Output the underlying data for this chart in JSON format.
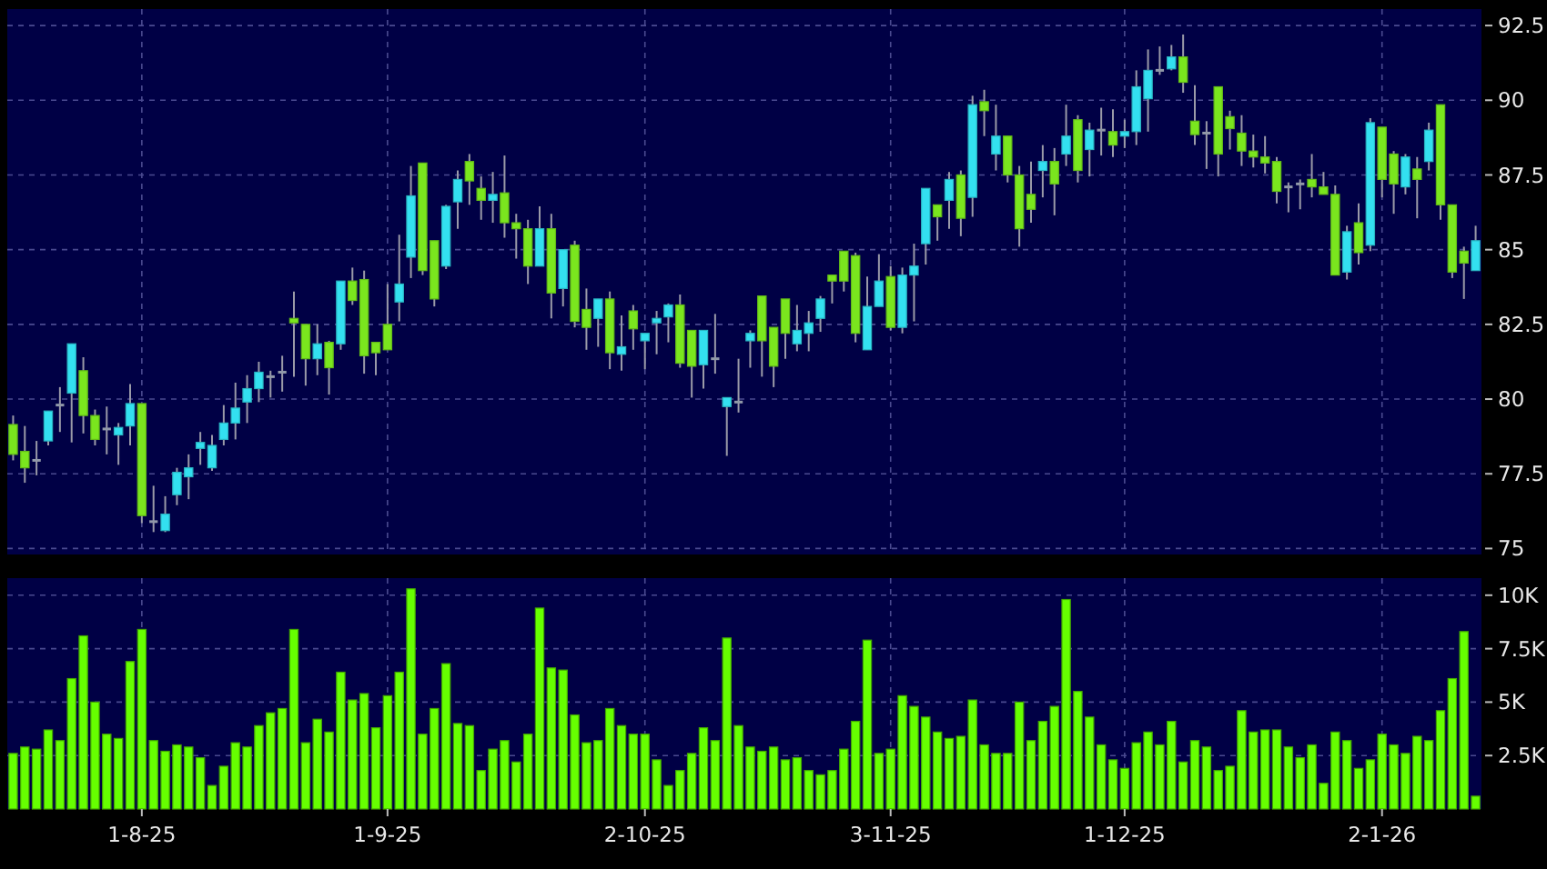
{
  "chart_data": [
    {
      "type": "candlestick",
      "grid": true,
      "tick_labels": "y",
      "ylim": [
        74.8,
        93.05
      ],
      "yticks": [
        75,
        77.5,
        80,
        82.5,
        85,
        87.5,
        90,
        92.5
      ],
      "categories": [
        null,
        null,
        null,
        null,
        null,
        null,
        null,
        null,
        null,
        null,
        null,
        null,
        null,
        null,
        null,
        null,
        null,
        null,
        null,
        null,
        null,
        null,
        null,
        null,
        null,
        null,
        null,
        null,
        null,
        null,
        null,
        null,
        null,
        null,
        null,
        null,
        null,
        null,
        null,
        null,
        null,
        null,
        null,
        null,
        null,
        null,
        null,
        null,
        null,
        null,
        null,
        null,
        null,
        null,
        null,
        null,
        null,
        null,
        null,
        null,
        null,
        null,
        null,
        null,
        null,
        null,
        null,
        null,
        null,
        null,
        null,
        null,
        null,
        null,
        null,
        null,
        null,
        null,
        null,
        null,
        null,
        null,
        null,
        null,
        null,
        null,
        null,
        null,
        null,
        null,
        null,
        null,
        null,
        null,
        null,
        null,
        null,
        null,
        null,
        null,
        null,
        null,
        null,
        null,
        null,
        null,
        null,
        null,
        null,
        null,
        null,
        null,
        null,
        null,
        null,
        null,
        null,
        null,
        null,
        null,
        null,
        null,
        null,
        null,
        null,
        null
      ],
      "ohlc": [
        [
          79.15,
          79.45,
          77.95,
          78.15
        ],
        [
          78.25,
          79.1,
          77.2,
          77.7
        ],
        [
          77.95,
          78.6,
          77.45,
          77.95
        ],
        [
          78.6,
          79.6,
          78.45,
          79.6
        ],
        [
          79.8,
          80.4,
          78.9,
          79.8
        ],
        [
          80.2,
          81.85,
          78.55,
          81.85
        ],
        [
          80.95,
          81.4,
          78.85,
          79.45
        ],
        [
          79.45,
          79.65,
          78.45,
          78.65
        ],
        [
          79.0,
          79.75,
          78.15,
          79.0
        ],
        [
          78.8,
          79.2,
          77.8,
          79.05
        ],
        [
          79.1,
          80.5,
          78.45,
          79.85
        ],
        [
          79.85,
          79.85,
          75.85,
          76.1
        ],
        [
          75.9,
          77.1,
          75.55,
          75.9
        ],
        [
          75.6,
          76.75,
          75.55,
          76.15
        ],
        [
          76.8,
          77.7,
          76.45,
          77.55
        ],
        [
          77.4,
          78.15,
          76.65,
          77.7
        ],
        [
          78.35,
          78.9,
          77.8,
          78.55
        ],
        [
          77.7,
          78.8,
          77.6,
          78.45
        ],
        [
          78.65,
          79.8,
          78.45,
          79.2
        ],
        [
          79.2,
          80.55,
          78.65,
          79.7
        ],
        [
          79.9,
          80.8,
          79.2,
          80.35
        ],
        [
          80.35,
          81.25,
          79.9,
          80.9
        ],
        [
          80.75,
          80.95,
          80.05,
          80.75
        ],
        [
          80.9,
          81.45,
          80.25,
          80.9
        ],
        [
          82.7,
          83.6,
          80.75,
          82.55
        ],
        [
          82.5,
          82.5,
          80.45,
          81.35
        ],
        [
          81.35,
          82.5,
          80.8,
          81.85
        ],
        [
          81.9,
          81.95,
          80.15,
          81.05
        ],
        [
          81.85,
          83.95,
          81.65,
          83.95
        ],
        [
          83.95,
          84.4,
          83.15,
          83.3
        ],
        [
          84.0,
          84.3,
          80.85,
          81.45
        ],
        [
          81.9,
          81.9,
          80.8,
          81.55
        ],
        [
          82.5,
          83.85,
          81.65,
          81.65
        ],
        [
          83.25,
          85.5,
          82.6,
          83.85
        ],
        [
          84.75,
          87.8,
          84.05,
          86.8
        ],
        [
          87.9,
          87.9,
          84.15,
          84.3
        ],
        [
          85.3,
          85.3,
          83.1,
          83.35
        ],
        [
          84.45,
          86.5,
          84.35,
          86.45
        ],
        [
          86.6,
          87.65,
          85.7,
          87.35
        ],
        [
          87.95,
          88.2,
          86.5,
          87.3
        ],
        [
          87.05,
          87.45,
          86.0,
          86.65
        ],
        [
          86.65,
          87.6,
          85.9,
          86.85
        ],
        [
          86.9,
          88.15,
          85.4,
          85.9
        ],
        [
          85.9,
          86.2,
          84.7,
          85.7
        ],
        [
          85.7,
          86.0,
          83.85,
          84.45
        ],
        [
          84.45,
          86.45,
          84.45,
          85.7
        ],
        [
          85.7,
          86.2,
          82.7,
          83.55
        ],
        [
          83.7,
          85.0,
          83.1,
          85.0
        ],
        [
          85.15,
          85.3,
          82.4,
          82.6
        ],
        [
          83.0,
          83.7,
          81.65,
          82.4
        ],
        [
          82.7,
          83.35,
          81.75,
          83.35
        ],
        [
          83.35,
          83.6,
          81.0,
          81.55
        ],
        [
          81.5,
          82.8,
          80.95,
          81.75
        ],
        [
          82.95,
          83.15,
          81.65,
          82.35
        ],
        [
          81.95,
          82.2,
          81.0,
          82.2
        ],
        [
          82.55,
          82.95,
          81.5,
          82.7
        ],
        [
          82.75,
          83.2,
          81.9,
          83.15
        ],
        [
          83.15,
          83.5,
          81.05,
          81.2
        ],
        [
          82.3,
          82.3,
          80.05,
          81.1
        ],
        [
          81.15,
          82.3,
          80.35,
          82.3
        ],
        [
          81.35,
          82.85,
          80.85,
          81.35
        ],
        [
          79.75,
          80.05,
          78.1,
          80.05
        ],
        [
          79.9,
          81.35,
          79.55,
          79.9
        ],
        [
          81.95,
          82.3,
          81.05,
          82.2
        ],
        [
          83.45,
          83.45,
          80.75,
          81.95
        ],
        [
          82.4,
          82.4,
          80.4,
          81.1
        ],
        [
          83.35,
          83.35,
          81.35,
          82.2
        ],
        [
          81.85,
          83.15,
          81.6,
          82.3
        ],
        [
          82.2,
          82.95,
          81.6,
          82.55
        ],
        [
          82.7,
          83.45,
          82.25,
          83.35
        ],
        [
          84.15,
          84.15,
          83.2,
          83.95
        ],
        [
          84.95,
          84.95,
          83.6,
          83.95
        ],
        [
          84.8,
          84.9,
          81.9,
          82.2
        ],
        [
          81.65,
          84.1,
          81.65,
          83.1
        ],
        [
          83.1,
          84.85,
          83.1,
          83.95
        ],
        [
          84.1,
          84.45,
          82.3,
          82.4
        ],
        [
          82.4,
          84.4,
          82.2,
          84.15
        ],
        [
          84.15,
          85.2,
          82.6,
          84.45
        ],
        [
          85.2,
          87.05,
          84.5,
          87.05
        ],
        [
          86.5,
          86.5,
          85.3,
          86.1
        ],
        [
          86.65,
          87.6,
          85.7,
          87.35
        ],
        [
          87.5,
          87.65,
          85.45,
          86.05
        ],
        [
          86.75,
          90.15,
          86.1,
          89.85
        ],
        [
          89.95,
          90.35,
          88.8,
          89.65
        ],
        [
          88.2,
          89.85,
          87.65,
          88.8
        ],
        [
          88.8,
          88.8,
          87.25,
          87.5
        ],
        [
          87.5,
          87.8,
          85.1,
          85.7
        ],
        [
          86.85,
          87.95,
          85.9,
          86.35
        ],
        [
          87.65,
          88.5,
          86.75,
          87.95
        ],
        [
          87.95,
          88.4,
          86.15,
          87.2
        ],
        [
          88.2,
          89.85,
          87.8,
          88.8
        ],
        [
          89.35,
          89.5,
          87.25,
          87.65
        ],
        [
          88.35,
          89.25,
          87.45,
          89.0
        ],
        [
          89.0,
          89.75,
          88.15,
          89.0
        ],
        [
          88.95,
          89.7,
          88.1,
          88.5
        ],
        [
          88.8,
          89.35,
          88.4,
          88.95
        ],
        [
          88.95,
          91.0,
          88.5,
          90.45
        ],
        [
          90.05,
          91.7,
          88.95,
          91.0
        ],
        [
          91.0,
          91.8,
          90.85,
          91.0
        ],
        [
          91.05,
          91.85,
          91.0,
          91.45
        ],
        [
          91.45,
          92.2,
          90.25,
          90.6
        ],
        [
          89.3,
          90.5,
          88.5,
          88.85
        ],
        [
          88.9,
          89.3,
          87.7,
          88.9
        ],
        [
          90.45,
          90.45,
          87.45,
          88.2
        ],
        [
          89.45,
          89.65,
          88.35,
          89.05
        ],
        [
          88.9,
          89.5,
          87.8,
          88.3
        ],
        [
          88.3,
          88.85,
          87.75,
          88.1
        ],
        [
          88.1,
          88.8,
          87.55,
          87.9
        ],
        [
          87.95,
          88.1,
          86.55,
          86.95
        ],
        [
          87.1,
          87.25,
          86.25,
          87.1
        ],
        [
          87.2,
          87.35,
          86.35,
          87.2
        ],
        [
          87.35,
          88.2,
          86.75,
          87.1
        ],
        [
          87.1,
          87.6,
          86.85,
          86.85
        ],
        [
          86.85,
          87.15,
          84.15,
          84.15
        ],
        [
          84.25,
          85.8,
          84.0,
          85.6
        ],
        [
          85.9,
          86.55,
          84.5,
          84.9
        ],
        [
          85.15,
          89.4,
          84.95,
          89.25
        ],
        [
          89.1,
          89.1,
          86.75,
          87.35
        ],
        [
          88.2,
          88.3,
          86.2,
          87.2
        ],
        [
          87.1,
          88.2,
          86.85,
          88.1
        ],
        [
          87.7,
          88.1,
          86.05,
          87.35
        ],
        [
          87.95,
          89.25,
          87.65,
          89.0
        ],
        [
          89.85,
          89.85,
          86.0,
          86.5
        ],
        [
          86.5,
          86.5,
          84.05,
          84.25
        ],
        [
          84.95,
          85.1,
          83.35,
          84.55
        ],
        [
          84.3,
          85.8,
          84.3,
          85.3
        ]
      ],
      "colors": [
        "#7ae61e",
        "#7ae61e",
        "#9098a8",
        "#33e0f0",
        "#9098a8",
        "#33e0f0",
        "#7ae61e",
        "#7ae61e",
        "#9098a8",
        "#33e0f0",
        "#33e0f0",
        "#7ae61e",
        "#9098a8",
        "#33e0f0",
        "#33e0f0",
        "#33e0f0",
        "#33e0f0",
        "#33e0f0",
        "#33e0f0",
        "#33e0f0",
        "#33e0f0",
        "#33e0f0",
        "#9098a8",
        "#9098a8",
        "#7ae61e",
        "#7ae61e",
        "#33e0f0",
        "#7ae61e",
        "#33e0f0",
        "#7ae61e",
        "#7ae61e",
        "#7ae61e",
        "#7ae61e",
        "#33e0f0",
        "#33e0f0",
        "#7ae61e",
        "#7ae61e",
        "#33e0f0",
        "#33e0f0",
        "#7ae61e",
        "#7ae61e",
        "#33e0f0",
        "#7ae61e",
        "#7ae61e",
        "#7ae61e",
        "#33e0f0",
        "#7ae61e",
        "#33e0f0",
        "#7ae61e",
        "#7ae61e",
        "#33e0f0",
        "#7ae61e",
        "#33e0f0",
        "#7ae61e",
        "#33e0f0",
        "#33e0f0",
        "#33e0f0",
        "#7ae61e",
        "#7ae61e",
        "#33e0f0",
        "#9098a8",
        "#33e0f0",
        "#9098a8",
        "#33e0f0",
        "#7ae61e",
        "#7ae61e",
        "#7ae61e",
        "#33e0f0",
        "#33e0f0",
        "#33e0f0",
        "#7ae61e",
        "#7ae61e",
        "#7ae61e",
        "#33e0f0",
        "#33e0f0",
        "#7ae61e",
        "#33e0f0",
        "#33e0f0",
        "#33e0f0",
        "#7ae61e",
        "#33e0f0",
        "#7ae61e",
        "#33e0f0",
        "#7ae61e",
        "#33e0f0",
        "#7ae61e",
        "#7ae61e",
        "#7ae61e",
        "#33e0f0",
        "#7ae61e",
        "#33e0f0",
        "#7ae61e",
        "#33e0f0",
        "#9098a8",
        "#7ae61e",
        "#33e0f0",
        "#33e0f0",
        "#33e0f0",
        "#9098a8",
        "#33e0f0",
        "#7ae61e",
        "#7ae61e",
        "#9098a8",
        "#7ae61e",
        "#7ae61e",
        "#7ae61e",
        "#7ae61e",
        "#7ae61e",
        "#7ae61e",
        "#9098a8",
        "#9098a8",
        "#7ae61e",
        "#7ae61e",
        "#7ae61e",
        "#33e0f0",
        "#7ae61e",
        "#33e0f0",
        "#7ae61e",
        "#7ae61e",
        "#33e0f0",
        "#7ae61e",
        "#33e0f0",
        "#7ae61e",
        "#7ae61e",
        "#7ae61e",
        "#33e0f0"
      ]
    },
    {
      "type": "bar",
      "grid": true,
      "color": "#66ff00",
      "ylim": [
        0,
        10800
      ],
      "yticks": [
        {
          "value": 2500,
          "label": "2.5K"
        },
        {
          "value": 5000,
          "label": "5K"
        },
        {
          "value": 7500,
          "label": "7.5K"
        },
        {
          "value": 10000,
          "label": "10K"
        }
      ],
      "categories": [
        null,
        null,
        null,
        null,
        null,
        null,
        null,
        null,
        null,
        null,
        null,
        "1-8-25",
        null,
        null,
        null,
        null,
        null,
        null,
        null,
        null,
        null,
        null,
        null,
        null,
        null,
        null,
        null,
        null,
        null,
        null,
        null,
        null,
        "1-9-25",
        null,
        null,
        null,
        null,
        null,
        null,
        null,
        null,
        null,
        null,
        null,
        null,
        null,
        null,
        null,
        null,
        null,
        null,
        null,
        null,
        null,
        "2-10-25",
        null,
        null,
        null,
        null,
        null,
        null,
        null,
        null,
        null,
        null,
        null,
        null,
        null,
        null,
        null,
        null,
        null,
        null,
        null,
        null,
        "3-11-25",
        null,
        null,
        null,
        null,
        null,
        null,
        null,
        null,
        null,
        null,
        null,
        null,
        null,
        null,
        null,
        null,
        null,
        null,
        null,
        "1-12-25",
        null,
        null,
        null,
        null,
        null,
        null,
        null,
        null,
        null,
        null,
        null,
        null,
        null,
        null,
        null,
        null,
        null,
        null,
        null,
        null,
        null,
        "2-1-26",
        null,
        null,
        null,
        null,
        null,
        null,
        null,
        null
      ],
      "values": [
        2600,
        2900,
        2800,
        3700,
        3200,
        6100,
        8100,
        5000,
        3500,
        3300,
        6900,
        8400,
        3200,
        2700,
        3000,
        2900,
        2400,
        1100,
        2000,
        3100,
        2900,
        3900,
        4500,
        4700,
        8400,
        3100,
        4200,
        3600,
        6400,
        5100,
        5400,
        3800,
        5300,
        6400,
        10300,
        3500,
        4700,
        6800,
        4000,
        3900,
        1800,
        2800,
        3200,
        2200,
        3500,
        9400,
        6600,
        6500,
        4400,
        3100,
        3200,
        4700,
        3900,
        3500,
        3500,
        2300,
        1100,
        1800,
        2600,
        3800,
        3200,
        8000,
        3900,
        2900,
        2700,
        2900,
        2300,
        2400,
        1800,
        1600,
        1800,
        2800,
        4100,
        7900,
        2600,
        2800,
        5300,
        4800,
        4300,
        3600,
        3300,
        3400,
        5100,
        3000,
        2600,
        2600,
        5000,
        3200,
        4100,
        4800,
        9800,
        5500,
        4300,
        3000,
        2300,
        1900,
        3100,
        3600,
        3000,
        4100,
        2200,
        3200,
        2900,
        1800,
        2000,
        4600,
        3600,
        3700,
        3700,
        2900,
        2400,
        3000,
        1200,
        3600,
        3200,
        1900,
        2300,
        3500,
        3000,
        2600,
        3400,
        3200,
        4600,
        6100,
        8300,
        600
      ]
    }
  ]
}
